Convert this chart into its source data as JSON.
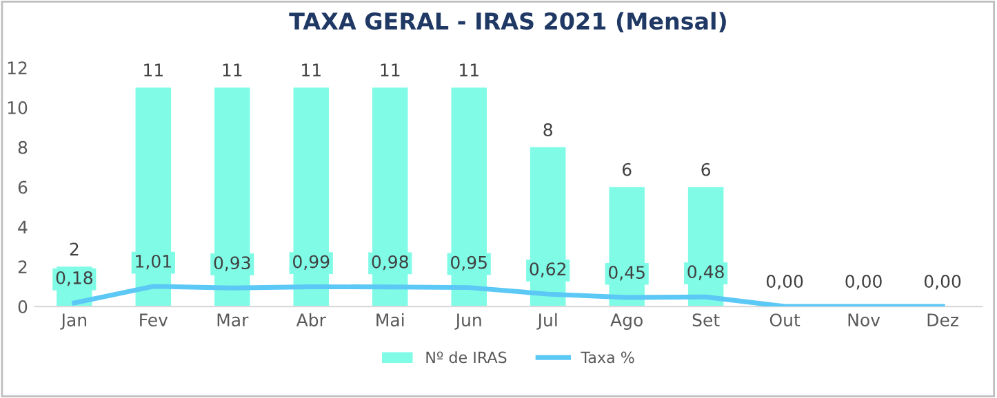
{
  "chart_data": {
    "type": "bar",
    "title": "TAXA GERAL - IRAS 2021 (Mensal)",
    "categories": [
      "Jan",
      "Fev",
      "Mar",
      "Abr",
      "Mai",
      "Jun",
      "Jul",
      "Ago",
      "Set",
      "Out",
      "Nov",
      "Dez"
    ],
    "series": [
      {
        "name": "Nº de IRAS",
        "color": "#7ffbe6",
        "values": [
          2,
          11,
          11,
          11,
          11,
          11,
          8,
          6,
          6,
          null,
          null,
          null
        ],
        "value_labels": [
          "2",
          "11",
          "11",
          "11",
          "11",
          "11",
          "8",
          "6",
          "6",
          null,
          null,
          null
        ]
      },
      {
        "name": "Taxa %",
        "type": "line",
        "color": "#5bc8f5",
        "values": [
          0.18,
          1.01,
          0.93,
          0.99,
          0.98,
          0.95,
          0.62,
          0.45,
          0.48,
          0,
          0,
          0
        ],
        "value_labels": [
          "0,18",
          "1,01",
          "0,93",
          "0,99",
          "0,98",
          "0,95",
          "0,62",
          "0,45",
          "0,48",
          "0,00",
          "0,00",
          "0,00"
        ]
      }
    ],
    "ylim": [
      0,
      12
    ],
    "yticks": [
      0,
      2,
      4,
      6,
      8,
      10,
      12
    ],
    "grid": false,
    "legend": "bottom"
  }
}
